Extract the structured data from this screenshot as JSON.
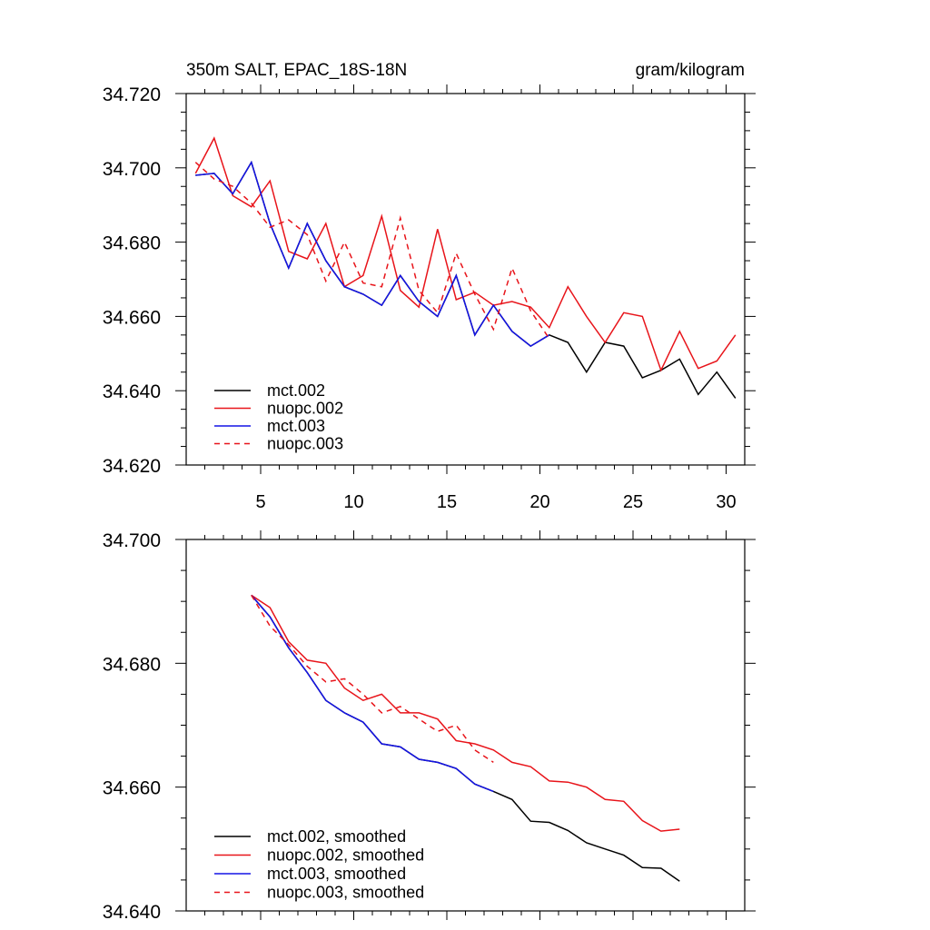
{
  "chart_data": [
    {
      "type": "line",
      "title_left": "350m SALT, EPAC_18S-18N",
      "title_right": "gram/kilogram",
      "xlabel": "",
      "ylabel": "",
      "xlim": [
        1,
        31
      ],
      "ylim": [
        34.62,
        34.72
      ],
      "xticks": [
        5,
        10,
        15,
        20,
        25,
        30
      ],
      "yticks": [
        34.62,
        34.64,
        34.66,
        34.68,
        34.7,
        34.72
      ],
      "ytick_labels": [
        "34.620",
        "34.640",
        "34.660",
        "34.680",
        "34.700",
        "34.720"
      ],
      "legend": "bottom-left",
      "series": [
        {
          "name": "mct.002",
          "color": "#000000",
          "dash": "",
          "x": [
            1.5,
            2.5,
            3.5,
            4.5,
            5.5,
            6.5,
            7.5,
            8.5,
            9.5,
            10.5,
            11.5,
            12.5,
            13.5,
            14.5,
            15.5,
            16.5,
            17.5,
            18.5,
            19.5,
            20.5,
            21.5,
            22.5,
            23.5,
            24.5,
            25.5,
            26.5,
            27.5,
            28.5,
            29.5,
            30.5
          ],
          "values": [
            34.698,
            34.6985,
            34.693,
            34.7015,
            34.685,
            34.673,
            34.685,
            34.675,
            34.668,
            34.666,
            34.663,
            34.671,
            34.664,
            34.66,
            34.671,
            34.655,
            34.663,
            34.656,
            34.652,
            34.655,
            34.653,
            34.645,
            34.653,
            34.652,
            34.6435,
            34.6455,
            34.6485,
            34.639,
            34.645,
            34.638
          ]
        },
        {
          "name": "nuopc.002",
          "color": "#e8141a",
          "dash": "",
          "x": [
            1.5,
            2.5,
            3.5,
            4.5,
            5.5,
            6.5,
            7.5,
            8.5,
            9.5,
            10.5,
            11.5,
            12.5,
            13.5,
            14.5,
            15.5,
            16.5,
            17.5,
            18.5,
            19.5,
            20.5,
            21.5,
            22.5,
            23.5,
            24.5,
            25.5,
            26.5,
            27.5,
            28.5,
            29.5,
            30.5
          ],
          "values": [
            34.6985,
            34.708,
            34.6925,
            34.6895,
            34.6965,
            34.6775,
            34.6755,
            34.685,
            34.668,
            34.671,
            34.687,
            34.667,
            34.6625,
            34.6835,
            34.6645,
            34.6665,
            34.663,
            34.664,
            34.6625,
            34.657,
            34.668,
            34.66,
            34.653,
            34.661,
            34.66,
            34.6455,
            34.656,
            34.646,
            34.648,
            34.655
          ]
        },
        {
          "name": "mct.003",
          "color": "#1414e6",
          "dash": "",
          "x": [
            1.5,
            2.5,
            3.5,
            4.5,
            5.5,
            6.5,
            7.5,
            8.5,
            9.5,
            10.5,
            11.5,
            12.5,
            13.5,
            14.5,
            15.5,
            16.5,
            17.5,
            18.5,
            19.5,
            20.5
          ],
          "values": [
            34.698,
            34.6985,
            34.693,
            34.7015,
            34.685,
            34.673,
            34.685,
            34.675,
            34.668,
            34.666,
            34.663,
            34.671,
            34.664,
            34.66,
            34.671,
            34.655,
            34.663,
            34.656,
            34.652,
            34.655
          ]
        },
        {
          "name": "nuopc.003",
          "color": "#e8141a",
          "dash": "6,5",
          "x": [
            1.5,
            2.5,
            3.5,
            4.5,
            5.5,
            6.5,
            7.5,
            8.5,
            9.5,
            10.5,
            11.5,
            12.5,
            13.5,
            14.5,
            15.5,
            16.5,
            17.5,
            18.5,
            19.5,
            20.5
          ],
          "values": [
            34.7015,
            34.697,
            34.695,
            34.6905,
            34.684,
            34.686,
            34.682,
            34.6695,
            34.68,
            34.669,
            34.668,
            34.6865,
            34.667,
            34.661,
            34.677,
            34.666,
            34.6565,
            34.673,
            34.6615,
            34.654
          ]
        }
      ]
    },
    {
      "type": "line",
      "title_left": "",
      "title_right": "",
      "xlabel": "",
      "ylabel": "",
      "xlim": [
        1,
        31
      ],
      "ylim": [
        34.64,
        34.7
      ],
      "xticks": [
        5,
        10,
        15,
        20,
        25,
        30
      ],
      "yticks": [
        34.64,
        34.66,
        34.68,
        34.7
      ],
      "ytick_labels": [
        "34.640",
        "34.660",
        "34.680",
        "34.700"
      ],
      "legend": "bottom-left",
      "series": [
        {
          "name": "mct.002, smoothed",
          "color": "#000000",
          "dash": "",
          "x": [
            4.5,
            5.5,
            6.5,
            7.5,
            8.5,
            9.5,
            10.5,
            11.5,
            12.5,
            13.5,
            14.5,
            15.5,
            16.5,
            17.5,
            18.5,
            19.5,
            20.5,
            21.5,
            22.5,
            23.5,
            24.5,
            25.5,
            26.5,
            27.5
          ],
          "values": [
            34.691,
            34.6875,
            34.6825,
            34.6785,
            34.674,
            34.672,
            34.6705,
            34.667,
            34.6665,
            34.6645,
            34.664,
            34.663,
            34.6605,
            34.6593,
            34.658,
            34.6545,
            34.6543,
            34.653,
            34.651,
            34.65,
            34.649,
            34.647,
            34.6469,
            34.6448
          ]
        },
        {
          "name": "nuopc.002, smoothed",
          "color": "#e8141a",
          "dash": "",
          "x": [
            4.5,
            5.5,
            6.5,
            7.5,
            8.5,
            9.5,
            10.5,
            11.5,
            12.5,
            13.5,
            14.5,
            15.5,
            16.5,
            17.5,
            18.5,
            19.5,
            20.5,
            21.5,
            22.5,
            23.5,
            24.5,
            25.5,
            26.5,
            27.5
          ],
          "values": [
            34.691,
            34.689,
            34.6835,
            34.6805,
            34.68,
            34.676,
            34.674,
            34.675,
            34.672,
            34.672,
            34.671,
            34.6675,
            34.667,
            34.666,
            34.664,
            34.6633,
            34.661,
            34.6608,
            34.66,
            34.658,
            34.6577,
            34.6546,
            34.6529,
            34.6532
          ]
        },
        {
          "name": "mct.003, smoothed",
          "color": "#1414e6",
          "dash": "",
          "x": [
            4.5,
            5.5,
            6.5,
            7.5,
            8.5,
            9.5,
            10.5,
            11.5,
            12.5,
            13.5,
            14.5,
            15.5,
            16.5,
            17.5
          ],
          "values": [
            34.691,
            34.6875,
            34.6825,
            34.6785,
            34.674,
            34.672,
            34.6705,
            34.667,
            34.6665,
            34.6645,
            34.664,
            34.663,
            34.6605,
            34.6593
          ]
        },
        {
          "name": "nuopc.003, smoothed",
          "color": "#e8141a",
          "dash": "6,5",
          "x": [
            4.5,
            5.5,
            6.5,
            7.5,
            8.5,
            9.5,
            10.5,
            11.5,
            12.5,
            13.5,
            14.5,
            15.5,
            16.5,
            17.5
          ],
          "values": [
            34.691,
            34.686,
            34.683,
            34.6795,
            34.677,
            34.6775,
            34.675,
            34.672,
            34.673,
            34.671,
            34.669,
            34.67,
            34.666,
            34.664
          ]
        }
      ]
    }
  ]
}
